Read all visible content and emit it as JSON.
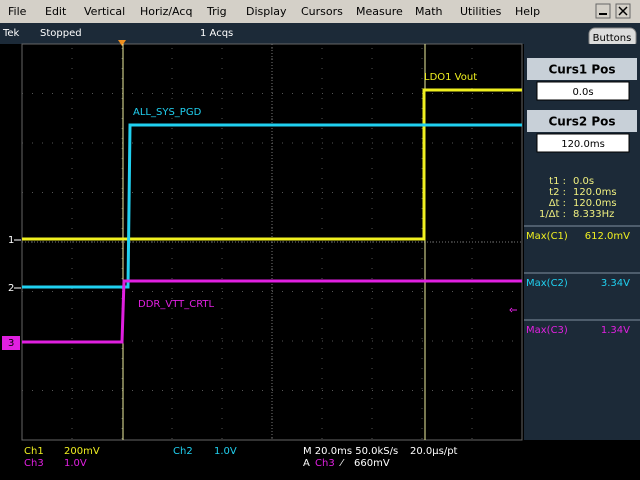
{
  "menu": [
    "File",
    "Edit",
    "Vertical",
    "Horiz/Acq",
    "Trig",
    "Display",
    "Cursors",
    "Measure",
    "Math",
    "Utilities",
    "Help"
  ],
  "status": {
    "brand": "Tek",
    "state": "Stopped",
    "acqs": "1 Acqs",
    "buttons": "Buttons"
  },
  "traces": {
    "ch1_marker": "1",
    "ch2_marker": "2",
    "ch3_marker": "3",
    "ch1_label": "LDO1 Vout",
    "ch2_label": "ALL_SYS_PGD",
    "ch3_label": "DDR_VTT_CRTL"
  },
  "panel": {
    "curs1": {
      "title": "Curs1 Pos",
      "value": "0.0s"
    },
    "curs2": {
      "title": "Curs2 Pos",
      "value": "120.0ms"
    },
    "readouts": [
      {
        "label": "t1 :",
        "value": "0.0s"
      },
      {
        "label": "t2 :",
        "value": "120.0ms"
      },
      {
        "label": "Δt :",
        "value": "120.0ms"
      },
      {
        "label": "1/Δt :",
        "value": "8.333Hz"
      }
    ],
    "measurements": [
      {
        "label": "Max(C1)",
        "value": "612.0mV"
      },
      {
        "label": "Max(C2)",
        "value": "3.34V"
      },
      {
        "label": "Max(C3)",
        "value": "1.34V"
      }
    ]
  },
  "footer": {
    "ch1": {
      "name": "Ch1",
      "scale": "200mV"
    },
    "ch3": {
      "name": "Ch3",
      "scale": "1.0V"
    },
    "ch2": {
      "name": "Ch2",
      "scale": "1.0V"
    },
    "timebase": "M 20.0ms 50.0kS/s",
    "resolution": "20.0µs/pt",
    "trigger": {
      "mode": "A",
      "source": "Ch3",
      "slope": "⁄",
      "level": "660mV"
    }
  }
}
